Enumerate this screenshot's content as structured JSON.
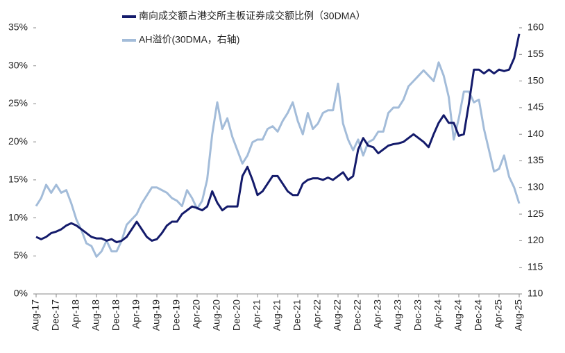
{
  "chart_data": {
    "type": "line",
    "categories": [
      "Aug-17",
      null,
      null,
      null,
      "Dec-17",
      null,
      null,
      null,
      "Apr-18",
      null,
      null,
      null,
      "Aug-18",
      null,
      null,
      null,
      "Dec-18",
      null,
      null,
      null,
      "Apr-19",
      null,
      null,
      null,
      "Aug-19",
      null,
      null,
      null,
      "Dec-19",
      null,
      null,
      null,
      "Apr-20",
      null,
      null,
      null,
      "Aug-20",
      null,
      null,
      null,
      "Dec-20",
      null,
      null,
      null,
      "Apr-21",
      null,
      null,
      null,
      "Aug-21",
      null,
      null,
      null,
      "Dec-21",
      null,
      null,
      null,
      "Apr-22",
      null,
      null,
      null,
      "Aug-22",
      null,
      null,
      null,
      "Dec-22",
      null,
      null,
      null,
      "Apr-23",
      null,
      null,
      null,
      "Aug-23",
      null,
      null,
      null,
      "Dec-23",
      null,
      null,
      null,
      "Apr-24",
      null,
      null,
      null,
      "Aug-24",
      null,
      null,
      null,
      "Dec-24",
      null,
      null,
      null,
      "Apr-25",
      null,
      null,
      null,
      "Aug-25"
    ],
    "series": [
      {
        "name": "南向成交额占港交所主板证券成交额比例（30DMA）",
        "color": "#141b6b",
        "axis": "y",
        "values": [
          7.5,
          7.2,
          7.5,
          8,
          8.2,
          8.5,
          9,
          9.3,
          9,
          8.5,
          8,
          7.5,
          7.3,
          7.3,
          7,
          7.2,
          6.8,
          7,
          7.5,
          8.5,
          9.5,
          8.5,
          7.5,
          7,
          7.2,
          8,
          9,
          9.5,
          9.5,
          10.5,
          11,
          11.5,
          11.3,
          11,
          11.5,
          13.5,
          12,
          11,
          11.5,
          11.5,
          11.5,
          15.5,
          16.7,
          15,
          13,
          13.5,
          14.5,
          15.5,
          15.5,
          14.5,
          13.5,
          13,
          13,
          14.5,
          15,
          15.2,
          15.2,
          15,
          15.3,
          15,
          15.5,
          16,
          15,
          15.5,
          19,
          20.5,
          19.5,
          19.3,
          18.5,
          19,
          19.5,
          19.7,
          19.8,
          20,
          20.5,
          21,
          20.5,
          20,
          19.3,
          21,
          22.5,
          23.5,
          22.5,
          22.5,
          20.8,
          21,
          25,
          29.5,
          29.5,
          29,
          29.5,
          29,
          29.5,
          29.3,
          29.5,
          31,
          34.2
        ]
      },
      {
        "name": "AH溢价(30DMA，右轴)",
        "color": "#a3bcd9",
        "axis": "y2",
        "values": [
          126.5,
          128,
          130.5,
          129,
          130.5,
          129,
          129.5,
          127,
          124,
          122,
          119.5,
          119,
          117,
          118,
          120,
          118,
          118,
          120,
          123,
          124,
          125,
          127,
          128.5,
          130,
          130,
          129.5,
          129,
          128,
          127.5,
          126.5,
          129.5,
          128,
          126,
          127.5,
          131.5,
          140,
          146,
          141,
          143,
          139.5,
          137,
          134.5,
          136,
          138.5,
          139,
          139,
          141,
          141.5,
          140.5,
          142.5,
          144,
          146,
          142.5,
          140,
          144,
          141,
          142,
          144,
          144.5,
          144.5,
          149.5,
          142,
          139,
          137,
          139,
          136,
          138.5,
          139,
          140.5,
          140.5,
          144,
          145,
          145,
          146.5,
          149,
          150,
          151,
          152,
          151,
          150,
          153.5,
          151,
          147,
          139,
          143,
          148,
          148,
          146,
          146.5,
          141,
          137,
          133,
          133.5,
          136,
          132,
          130,
          127
        ]
      }
    ],
    "ylim": [
      0,
      35
    ],
    "yticks": [
      {
        "value": 0,
        "label": "0%"
      },
      {
        "value": 5,
        "label": "5%"
      },
      {
        "value": 10,
        "label": "10%"
      },
      {
        "value": 15,
        "label": "15%"
      },
      {
        "value": 20,
        "label": "20%"
      },
      {
        "value": 25,
        "label": "25%"
      },
      {
        "value": 30,
        "label": "30%"
      },
      {
        "value": 35,
        "label": "35%"
      }
    ],
    "y2lim": [
      110,
      160
    ],
    "y2ticks": [
      110,
      115,
      120,
      125,
      130,
      135,
      140,
      145,
      150,
      155,
      160
    ],
    "legend": "top"
  }
}
